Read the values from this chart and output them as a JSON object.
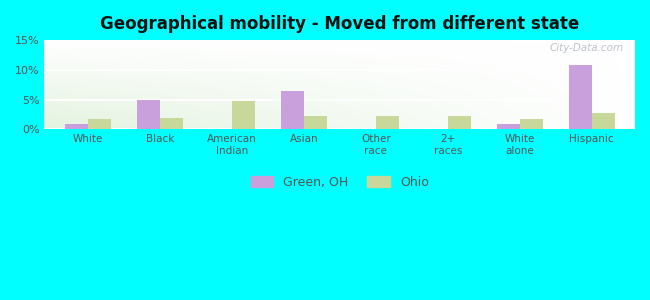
{
  "title": "Geographical mobility - Moved from different state",
  "categories": [
    "White",
    "Black",
    "American\nIndian",
    "Asian",
    "Other\nrace",
    "2+\nraces",
    "White\nalone",
    "Hispanic"
  ],
  "green_oh": [
    1.0,
    4.9,
    0.0,
    6.5,
    0.0,
    0.0,
    0.9,
    10.9
  ],
  "ohio": [
    1.7,
    2.0,
    4.7,
    2.3,
    2.3,
    2.2,
    1.7,
    2.8
  ],
  "bar_color_green": "#c9a0dc",
  "bar_color_ohio": "#c8d89a",
  "ylim": [
    0,
    15
  ],
  "yticks": [
    0,
    5,
    10,
    15
  ],
  "ytick_labels": [
    "0%",
    "5%",
    "10%",
    "15%"
  ],
  "outer_bg": "#00ffff",
  "legend_label_green": "Green, OH",
  "legend_label_ohio": "Ohio",
  "watermark": "City-Data.com"
}
